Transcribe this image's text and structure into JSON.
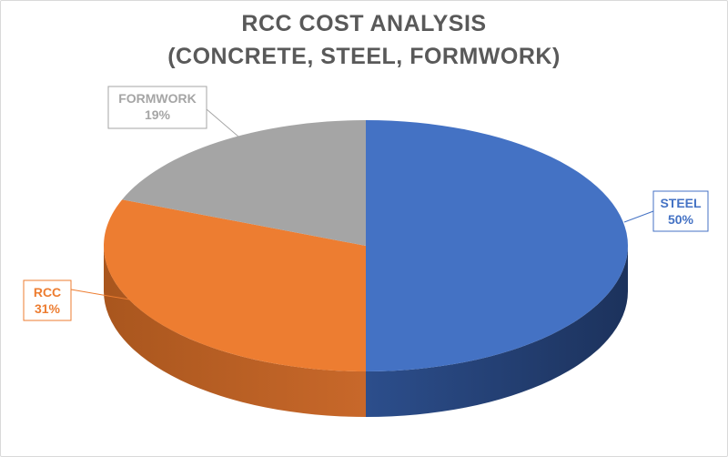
{
  "chart_data": {
    "type": "pie",
    "title": "RCC COST ANALYSIS",
    "subtitle": "(CONCRETE, STEEL, FORMWORK)",
    "categories": [
      "STEEL",
      "RCC",
      "FORMWORK"
    ],
    "values": [
      50,
      31,
      19
    ],
    "value_labels": [
      "50%",
      "31%",
      "19%"
    ],
    "colors": [
      "#4472c4",
      "#ed7d31",
      "#a5a5a5"
    ],
    "label_colors": [
      "#4472c4",
      "#ed7d31",
      "#a5a5a5"
    ],
    "style": "3d"
  }
}
